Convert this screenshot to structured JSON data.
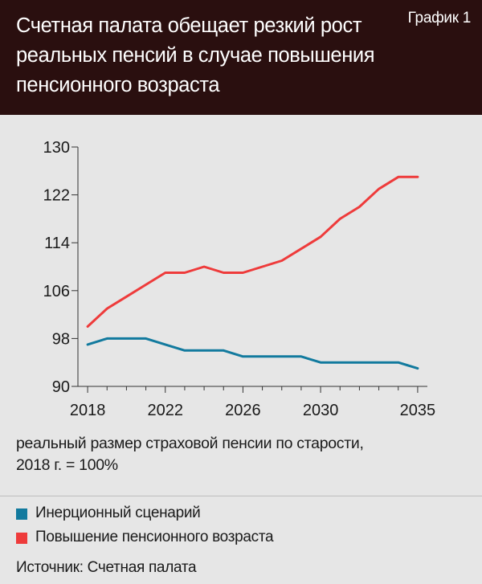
{
  "header": {
    "title": "Счетная палата обещает резкий рост реальных пенсий в случае повышения пенсионного возраста",
    "tag": "График 1",
    "background": "#2a0f0f"
  },
  "chart_data": {
    "type": "line",
    "title": "Счетная палата обещает резкий рост реальных пенсий в случае повышения пенсионного возраста",
    "ylabel": "реальный размер страховой пенсии по старости, 2018 г. = 100%",
    "ylabel_lines": [
      "реальный размер страховой пенсии по старости,",
      "2018 г. = 100%"
    ],
    "xlabel": "",
    "xlim": [
      2017.5,
      2035.5
    ],
    "ylim": [
      90,
      130
    ],
    "x_ticks": [
      2018,
      2022,
      2026,
      2030,
      2035
    ],
    "y_ticks": [
      90,
      98,
      106,
      114,
      122,
      130
    ],
    "grid": false,
    "x": [
      2018,
      2019,
      2020,
      2021,
      2022,
      2023,
      2024,
      2025,
      2026,
      2027,
      2028,
      2029,
      2030,
      2031,
      2032,
      2033,
      2034,
      2035
    ],
    "series": [
      {
        "name": "Инерционный сценарий",
        "color": "#127a9e",
        "values": [
          97,
          98,
          98,
          98,
          97,
          96,
          96,
          96,
          95,
          95,
          95,
          95,
          94,
          94,
          94,
          94,
          94,
          93
        ]
      },
      {
        "name": "Повышение пенсионного возраста",
        "color": "#ee3b3b",
        "values": [
          100,
          103,
          105,
          107,
          109,
          109,
          110,
          109,
          109,
          110,
          111,
          113,
          115,
          118,
          120,
          123,
          125,
          125
        ]
      }
    ]
  },
  "legend": {
    "items": [
      {
        "label": "Инерционный сценарий",
        "color": "#127a9e"
      },
      {
        "label": "Повышение пенсионного возраста",
        "color": "#ee3b3b"
      }
    ]
  },
  "footer": {
    "source": "Источник: Счетная палата"
  }
}
